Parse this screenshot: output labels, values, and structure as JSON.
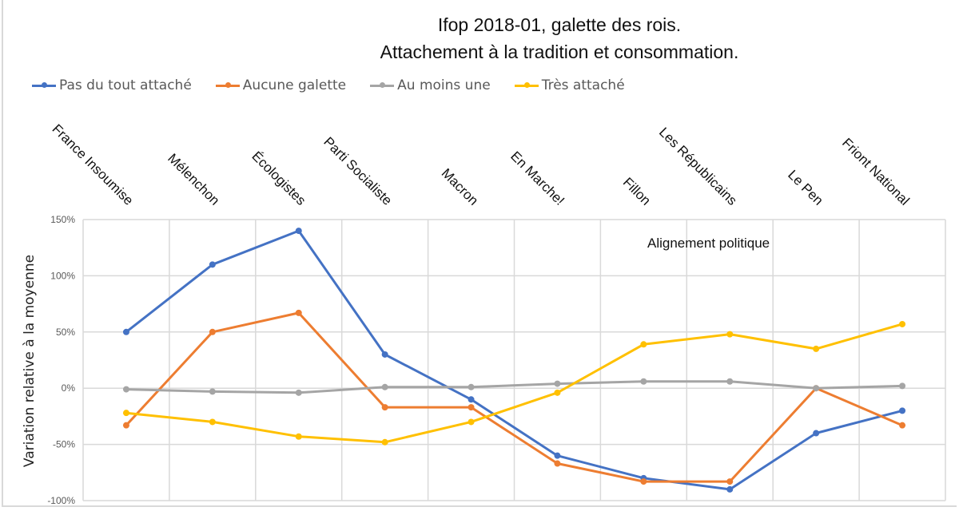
{
  "chart_data": {
    "type": "line",
    "title": [
      "Ifop 2018-01, galette des rois.",
      "Attachement à la tradition et consommation."
    ],
    "xlabel": "",
    "ylabel": "Variation relative à la moyenne",
    "annotation": "Alignement politique",
    "categories": [
      "France Insoumise",
      "Mélenchon",
      "Écologistes",
      "Parti Socialiste",
      "Macron",
      "En Marche!",
      "Fillon",
      "Les Républicains",
      "Le Pen",
      "Friont National"
    ],
    "ylim": [
      -100,
      150
    ],
    "yticks": [
      150,
      100,
      50,
      0,
      -50,
      -100
    ],
    "ytick_labels": [
      "150%",
      "100%",
      "50%",
      "0%",
      "-50%",
      "-100%"
    ],
    "grid": true,
    "legend_position": "top-left",
    "series": [
      {
        "name": "Pas du tout attaché",
        "color": "#4472c4",
        "values": [
          50,
          110,
          140,
          30,
          -10,
          -60,
          -80,
          -90,
          -40,
          -20
        ]
      },
      {
        "name": "Aucune galette",
        "color": "#ed7d31",
        "values": [
          -33,
          50,
          67,
          -17,
          -17,
          -67,
          -83,
          -83,
          0,
          -33
        ]
      },
      {
        "name": "Au moins une",
        "color": "#a5a5a5",
        "values": [
          -1,
          -3,
          -4,
          1,
          1,
          4,
          6,
          6,
          0,
          2
        ]
      },
      {
        "name": "Très attaché",
        "color": "#ffc000",
        "values": [
          -22,
          -30,
          -43,
          -48,
          -30,
          -4,
          39,
          48,
          35,
          57
        ]
      }
    ]
  }
}
